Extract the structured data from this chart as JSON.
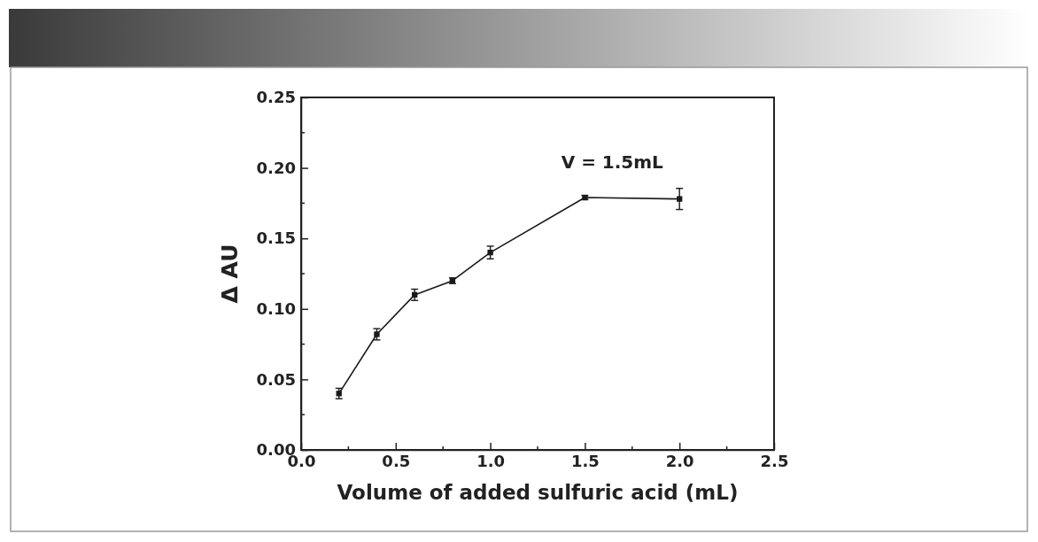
{
  "chart_data": {
    "type": "line",
    "xlabel": "Volume of added sulfuric acid (mL)",
    "ylabel": "Δ AU",
    "annotations": [
      "V = 1.5mL"
    ],
    "x": [
      0.2,
      0.4,
      0.6,
      0.8,
      1.0,
      1.5,
      2.0
    ],
    "series": [
      {
        "color": "#1a1a1a",
        "values": [
          0.04,
          0.082,
          0.11,
          0.12,
          0.14,
          0.179,
          0.178
        ],
        "errors": [
          0.0037,
          0.004,
          0.004,
          0.002,
          0.0045,
          0.0015,
          0.0075
        ]
      }
    ],
    "xlim": [
      0,
      2.5
    ],
    "xticks": [
      {
        "value": 0,
        "label": "0.0"
      },
      {
        "value": 0.5,
        "label": "0.5"
      },
      {
        "value": 1,
        "label": "1.0"
      },
      {
        "value": 1.5,
        "label": "1.5"
      },
      {
        "value": 2,
        "label": "2.0"
      },
      {
        "value": 2.5,
        "label": "2.5"
      }
    ],
    "ylim": [
      0,
      0.25
    ],
    "yticks": [
      {
        "value": 0,
        "label": "0.00"
      },
      {
        "value": 0.05,
        "label": "0.05"
      },
      {
        "value": 0.1,
        "label": "0.10"
      },
      {
        "value": 0.15,
        "label": "0.15"
      },
      {
        "value": 0.2,
        "label": "0.20"
      },
      {
        "value": 0.25,
        "label": "0.25"
      }
    ],
    "grid": false,
    "marker": "square",
    "line_style": "solid"
  }
}
